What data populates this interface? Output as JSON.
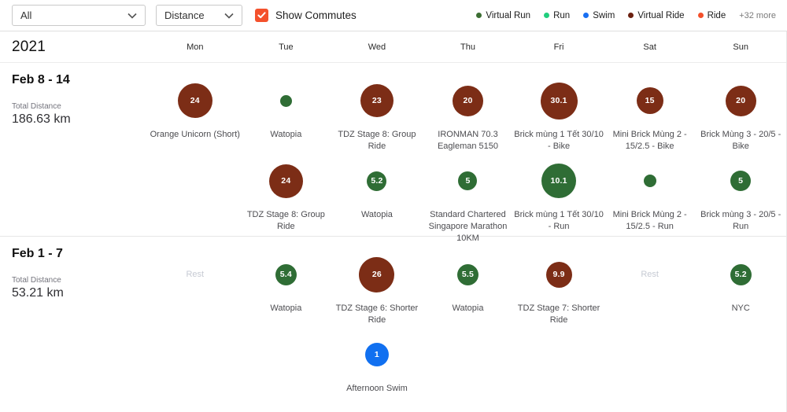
{
  "toolbar": {
    "sport_filter": {
      "value": "All"
    },
    "metric_filter": {
      "value": "Distance"
    },
    "show_commutes": {
      "label": "Show Commutes",
      "checked": true,
      "color": "#f4512c"
    },
    "legend": [
      {
        "id": "virtual-run",
        "label": "Virtual Run",
        "color": "#3c6e33"
      },
      {
        "id": "run",
        "label": "Run",
        "color": "#21ce7e"
      },
      {
        "id": "swim",
        "label": "Swim",
        "color": "#186ff2"
      },
      {
        "id": "virtual-ride",
        "label": "Virtual Ride",
        "color": "#6b2010"
      },
      {
        "id": "ride",
        "label": "Ride",
        "color": "#f4502a"
      }
    ],
    "more_label": "+32 more"
  },
  "header": {
    "year": "2021",
    "days": [
      "Mon",
      "Tue",
      "Wed",
      "Thu",
      "Fri",
      "Sat",
      "Sun"
    ]
  },
  "activity_colors": {
    "virtual_run": "#2f6d35",
    "virtual_ride": "#7c2d16",
    "swim": "#1170f0"
  },
  "weeks": [
    {
      "title": "Feb 8 - 14",
      "total_label": "Total Distance",
      "total_value": "186.63 km",
      "rows": [
        [
          {
            "value": "24",
            "type": "virtual_ride",
            "size": 44,
            "label": "Orange Unicorn (Short)"
          },
          {
            "value": "",
            "type": "virtual_run",
            "size": 15,
            "label": "Watopia"
          },
          {
            "value": "23",
            "type": "virtual_ride",
            "size": 42,
            "label": "TDZ Stage 8: Group Ride"
          },
          {
            "value": "20",
            "type": "virtual_ride",
            "size": 39,
            "label": "IRONMAN 70.3 Eagleman 5150"
          },
          {
            "value": "30.1",
            "type": "virtual_ride",
            "size": 47,
            "label": "Brick mùng 1 Tết 30/10 - Bike"
          },
          {
            "value": "15",
            "type": "virtual_ride",
            "size": 34,
            "label": "Mini Brick Mùng 2 - 15/2.5 - Bike"
          },
          {
            "value": "20",
            "type": "virtual_ride",
            "size": 39,
            "label": "Brick Mùng 3 - 20/5 - Bike"
          }
        ],
        [
          null,
          {
            "value": "24",
            "type": "virtual_ride",
            "size": 43,
            "label": "TDZ Stage 8: Group Ride"
          },
          {
            "value": "5.2",
            "type": "virtual_run",
            "size": 25,
            "label": "Watopia"
          },
          {
            "value": "5",
            "type": "virtual_run",
            "size": 24,
            "label": "Standard Chartered Singapore Marathon 10KM"
          },
          {
            "value": "10.1",
            "type": "virtual_run",
            "size": 44,
            "label": "Brick mùng 1 Tết 30/10 - Run"
          },
          {
            "value": "",
            "type": "virtual_run",
            "size": 16,
            "label": "Mini Brick Mùng 2 - 15/2.5 - Run"
          },
          {
            "value": "5",
            "type": "virtual_run",
            "size": 26,
            "label": "Brick mùng 3 - 20/5 - Run"
          }
        ]
      ]
    },
    {
      "title": "Feb 1 - 7",
      "total_label": "Total Distance",
      "total_value": "53.21 km",
      "rows": [
        [
          {
            "rest": true,
            "rest_label": "Rest"
          },
          {
            "value": "5.4",
            "type": "virtual_run",
            "size": 27,
            "label": "Watopia"
          },
          {
            "value": "26",
            "type": "virtual_ride",
            "size": 45,
            "label": "TDZ Stage 6: Shorter Ride"
          },
          {
            "value": "5.5",
            "type": "virtual_run",
            "size": 27,
            "label": "Watopia"
          },
          {
            "value": "9.9",
            "type": "virtual_ride",
            "size": 33,
            "label": "TDZ Stage 7: Shorter Ride"
          },
          {
            "rest": true,
            "rest_label": "Rest"
          },
          {
            "value": "5.2",
            "type": "virtual_run",
            "size": 27,
            "label": "NYC"
          }
        ],
        [
          null,
          null,
          {
            "value": "1",
            "type": "swim",
            "size": 30,
            "label": "Afternoon Swim"
          },
          null,
          null,
          null,
          null
        ]
      ]
    }
  ]
}
